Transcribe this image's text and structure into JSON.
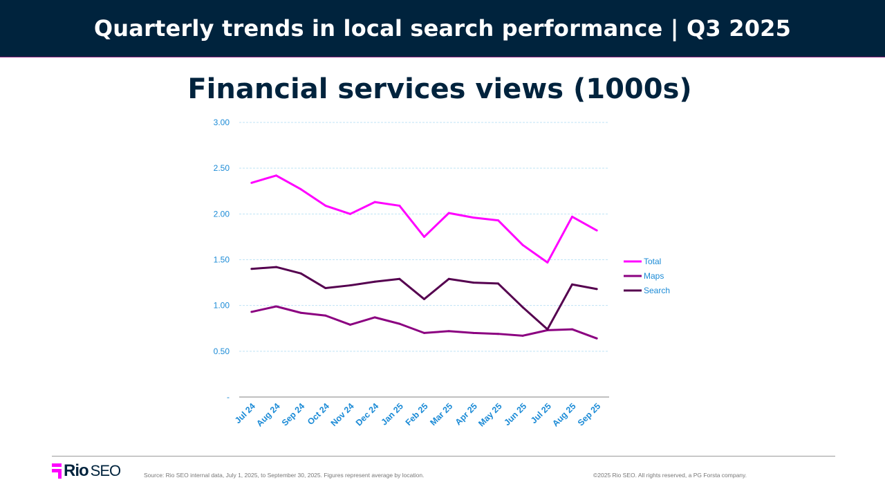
{
  "header": {
    "title": "Quarterly trends in local search performance  |  Q3 2025"
  },
  "chart_data": {
    "type": "line",
    "title": "Financial services views (1000s)",
    "categories": [
      "Jul 24",
      "Aug 24",
      "Sep 24",
      "Oct 24",
      "Nov 24",
      "Dec 24",
      "Jan 25",
      "Feb 25",
      "Mar 25",
      "Apr 25",
      "May 25",
      "Jun 25",
      "Jul 25",
      "Aug 25",
      "Sep 25"
    ],
    "ylim": [
      0,
      3
    ],
    "yticks": [
      {
        "v": 0,
        "label": "-"
      },
      {
        "v": 0.5,
        "label": "0.50"
      },
      {
        "v": 1,
        "label": "1.00"
      },
      {
        "v": 1.5,
        "label": "1.50"
      },
      {
        "v": 2,
        "label": "2.00"
      },
      {
        "v": 2.5,
        "label": "2.50"
      },
      {
        "v": 3,
        "label": "3.00"
      }
    ],
    "grid": true,
    "legend": "right",
    "series": [
      {
        "name": "Total",
        "color": "#ff00ff",
        "values": [
          2.34,
          2.42,
          2.27,
          2.09,
          2.0,
          2.13,
          2.09,
          1.75,
          2.01,
          1.96,
          1.93,
          1.66,
          1.47,
          1.97,
          1.82
        ]
      },
      {
        "name": "Maps",
        "color": "#8b0080",
        "values": [
          0.93,
          0.99,
          0.92,
          0.89,
          0.79,
          0.87,
          0.8,
          0.7,
          0.72,
          0.7,
          0.69,
          0.67,
          0.73,
          0.74,
          0.64
        ]
      },
      {
        "name": "Search",
        "color": "#55004f",
        "values": [
          1.4,
          1.42,
          1.35,
          1.19,
          1.22,
          1.26,
          1.29,
          1.07,
          1.29,
          1.25,
          1.24,
          0.98,
          0.74,
          1.23,
          1.18
        ]
      }
    ]
  },
  "footer": {
    "logo_text": "Rio SEO",
    "logo_bold": "Rio",
    "logo_light": "SEO",
    "source": "Source: Rio SEO internal data, July 1, 2025, to September 30, 2025. Figures represent average by location.",
    "copyright": "©2025 Rio SEO. All rights reserved, a PG Forsta company."
  }
}
